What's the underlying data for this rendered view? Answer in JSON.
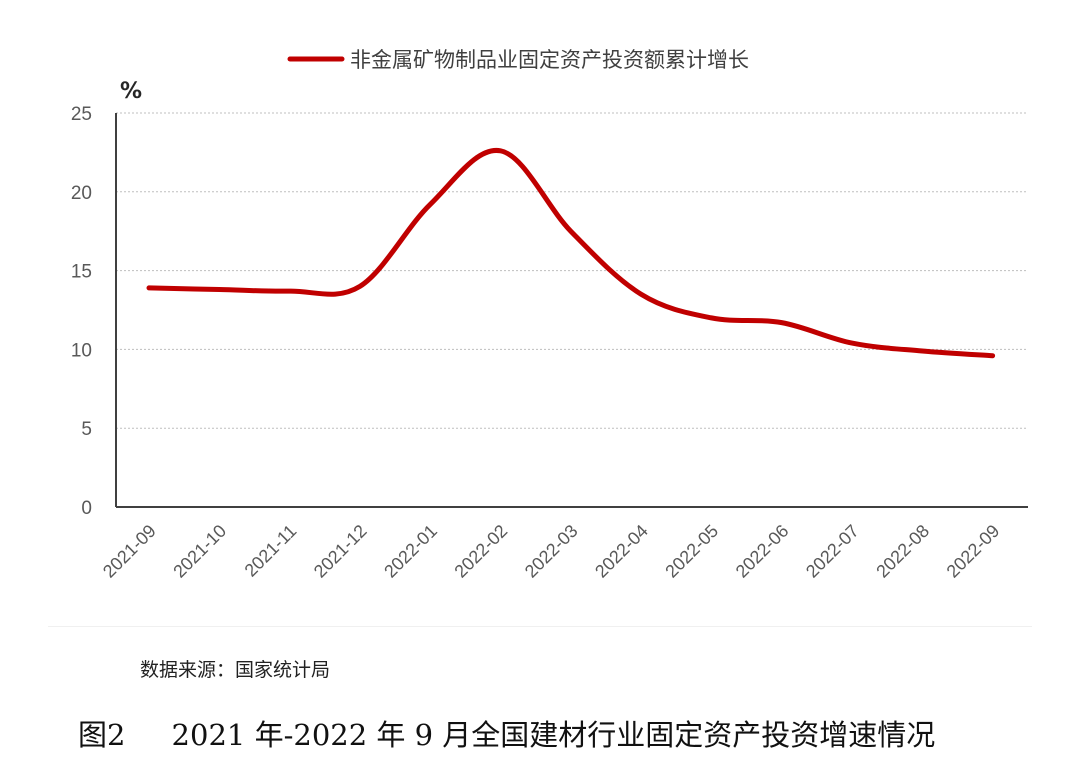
{
  "chart_data": {
    "type": "line",
    "categories": [
      "2021-09",
      "2021-10",
      "2021-11",
      "2021-12",
      "2022-01",
      "2022-02",
      "2022-03",
      "2022-04",
      "2022-05",
      "2022-06",
      "2022-07",
      "2022-08",
      "2022-09"
    ],
    "series": [
      {
        "name": "非金属矿物制品业固定资产投资额累计增长",
        "values": [
          13.9,
          13.8,
          13.7,
          14.0,
          19.2,
          22.6,
          17.5,
          13.5,
          12.0,
          11.7,
          10.4,
          9.9,
          9.6
        ]
      }
    ],
    "ylabel": "%",
    "yticks": [
      0,
      5,
      10,
      15,
      20,
      25
    ],
    "ylim": [
      0,
      25
    ],
    "grid": true,
    "legend_position": "top-center",
    "line_color": "#c00000"
  },
  "source_text": "数据来源：国家统计局",
  "caption": "图2     2021 年-2022 年 9 月全国建材行业固定资产投资增速情况"
}
